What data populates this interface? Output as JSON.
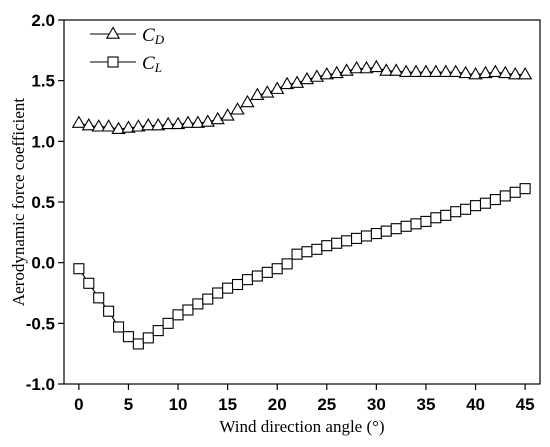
{
  "chart_data": {
    "type": "line",
    "xlabel": "Wind direction angle (°)",
    "ylabel": "Aerodynamic force coefficient",
    "xlim": [
      -1.5,
      46.5
    ],
    "ylim": [
      -1.0,
      2.0
    ],
    "xticks": [
      0,
      5,
      10,
      15,
      20,
      25,
      30,
      35,
      40,
      45
    ],
    "xtick_labels": [
      "0",
      "5",
      "10",
      "15",
      "20",
      "25",
      "30",
      "35",
      "40",
      "45"
    ],
    "yticks": [
      -1.0,
      -0.5,
      0.0,
      0.5,
      1.0,
      1.5,
      2.0
    ],
    "ytick_labels": [
      "-1.0",
      "-0.5",
      "0.0",
      "0.5",
      "1.0",
      "1.5",
      "2.0"
    ],
    "grid": false,
    "legend_position": "top-left",
    "x": [
      0,
      1,
      2,
      3,
      4,
      5,
      6,
      7,
      8,
      9,
      10,
      11,
      12,
      13,
      14,
      15,
      16,
      17,
      18,
      19,
      20,
      21,
      22,
      23,
      24,
      25,
      26,
      27,
      28,
      29,
      30,
      31,
      32,
      33,
      34,
      35,
      36,
      37,
      38,
      39,
      40,
      41,
      42,
      43,
      44,
      45
    ],
    "series": [
      {
        "name_main": "C",
        "name_sub": "D",
        "marker": "triangle",
        "color": "#000000",
        "values": [
          1.15,
          1.13,
          1.12,
          1.12,
          1.1,
          1.11,
          1.12,
          1.13,
          1.13,
          1.14,
          1.14,
          1.15,
          1.15,
          1.16,
          1.18,
          1.21,
          1.26,
          1.32,
          1.38,
          1.4,
          1.43,
          1.47,
          1.48,
          1.51,
          1.53,
          1.55,
          1.56,
          1.58,
          1.6,
          1.6,
          1.61,
          1.58,
          1.58,
          1.57,
          1.57,
          1.57,
          1.57,
          1.57,
          1.57,
          1.56,
          1.55,
          1.56,
          1.57,
          1.56,
          1.55,
          1.55
        ]
      },
      {
        "name_main": "C",
        "name_sub": "L",
        "marker": "square",
        "color": "#000000",
        "values": [
          -0.05,
          -0.17,
          -0.29,
          -0.4,
          -0.53,
          -0.61,
          -0.67,
          -0.62,
          -0.56,
          -0.5,
          -0.43,
          -0.39,
          -0.34,
          -0.3,
          -0.25,
          -0.21,
          -0.18,
          -0.14,
          -0.11,
          -0.08,
          -0.05,
          -0.01,
          0.07,
          0.09,
          0.11,
          0.14,
          0.16,
          0.18,
          0.2,
          0.22,
          0.24,
          0.26,
          0.28,
          0.3,
          0.32,
          0.34,
          0.37,
          0.39,
          0.42,
          0.44,
          0.47,
          0.49,
          0.52,
          0.55,
          0.58,
          0.61
        ]
      }
    ]
  }
}
